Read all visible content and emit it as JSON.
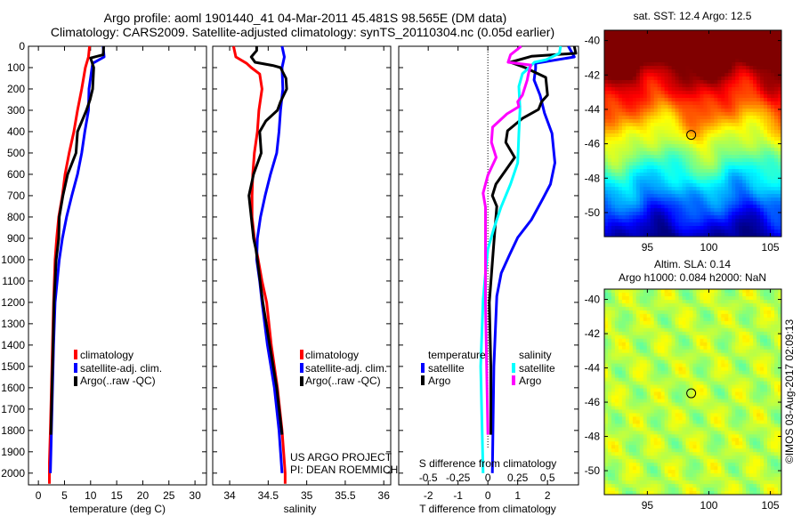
{
  "header": {
    "title_line1": "Argo profile: aoml 1901440_41 04-Mar-2011 45.481S 98.565E (DM data)",
    "title_line2": "Climatology: CARS2009. Satellite-adjusted climatology: synTS_20110304.nc (0.05d earlier)"
  },
  "legends": {
    "profile": [
      "climatology",
      "satellite-adj. clim.",
      "Argo(..raw -QC)"
    ],
    "diff_temperature_title": "temperature",
    "diff_salinity_title": "salinity",
    "diff_satellite": "satellite",
    "diff_argo": "Argo"
  },
  "credits": {
    "project": "US ARGO PROJECT",
    "pi": "PI: DEAN ROEMMICH",
    "imos": "©IMOS 03-Aug-2017 02:09:13"
  },
  "colors": {
    "climatology": "#ff0000",
    "satellite": "#0000ff",
    "argo": "#000000",
    "s_satellite": "#00ffff",
    "s_argo": "#ff00ff"
  },
  "chart_data": [
    {
      "type": "line",
      "title": "",
      "xlabel": "temperature (deg C)",
      "ylabel": "",
      "xlim": [
        -1.9,
        32.2
      ],
      "ylim": [
        2055,
        0
      ],
      "xticks": [
        0,
        5,
        10,
        15,
        20,
        25,
        30
      ],
      "yticks": [
        0,
        100,
        200,
        300,
        400,
        500,
        600,
        700,
        800,
        900,
        1000,
        1100,
        1200,
        1300,
        1400,
        1500,
        1600,
        1700,
        1800,
        1900,
        2000
      ],
      "series": [
        {
          "name": "climatology",
          "depth": [
            0,
            50,
            100,
            200,
            300,
            400,
            500,
            600,
            700,
            800,
            900,
            1000,
            1200,
            1400,
            1600,
            1800,
            1950,
            2050
          ],
          "values": [
            9.8,
            9.6,
            9.0,
            8.3,
            7.5,
            6.8,
            5.9,
            5.1,
            4.6,
            3.9,
            3.5,
            3.2,
            2.9,
            2.7,
            2.5,
            2.3,
            2.1,
            2.1
          ]
        },
        {
          "name": "satellite-adj. clim.",
          "depth": [
            0,
            50,
            80,
            200,
            300,
            400,
            500,
            600,
            700,
            800,
            900,
            1000,
            1200,
            1400,
            1600,
            1800,
            2000
          ],
          "values": [
            12.4,
            12.6,
            10.4,
            9.7,
            9.6,
            8.9,
            8.3,
            7.5,
            6.4,
            5.4,
            4.6,
            4.0,
            3.2,
            2.9,
            2.7,
            2.5,
            2.3
          ]
        },
        {
          "name": "Argo(..raw -QC)",
          "depth": [
            0,
            40,
            55,
            100,
            200,
            250,
            300,
            400,
            500,
            600,
            700,
            800,
            900,
            1000,
            1200,
            1400,
            1600,
            1820
          ],
          "values": [
            12.5,
            12.4,
            10.0,
            10.6,
            10.4,
            9.9,
            9.2,
            7.5,
            7.2,
            5.6,
            4.7,
            4.0,
            3.9,
            3.4,
            3.0,
            2.8,
            2.6,
            2.4
          ]
        }
      ]
    },
    {
      "type": "line",
      "title": "",
      "xlabel": "salinity",
      "ylabel": "",
      "xlim": [
        33.78,
        36.09
      ],
      "ylim": [
        2055,
        0
      ],
      "xticks": [
        34,
        34.5,
        35,
        35.5,
        36
      ],
      "series": [
        {
          "name": "climatology",
          "depth": [
            0,
            50,
            80,
            100,
            130,
            200,
            300,
            400,
            500,
            600,
            700,
            800,
            900,
            1000,
            1100,
            1200,
            1400,
            1600,
            1800,
            2000,
            2050
          ],
          "values": [
            34.05,
            34.08,
            34.22,
            34.28,
            34.39,
            34.42,
            34.38,
            34.36,
            34.32,
            34.3,
            34.29,
            34.29,
            34.32,
            34.37,
            34.42,
            34.48,
            34.54,
            34.62,
            34.68,
            34.72,
            34.72
          ]
        },
        {
          "name": "satellite-adj. clim.",
          "depth": [
            0,
            50,
            100,
            200,
            300,
            400,
            500,
            600,
            700,
            800,
            900,
            1000,
            1100,
            1200,
            1400,
            1600,
            1800,
            2000
          ],
          "values": [
            34.68,
            34.71,
            34.68,
            34.69,
            34.66,
            34.64,
            34.61,
            34.53,
            34.46,
            34.4,
            34.36,
            34.35,
            34.39,
            34.42,
            34.49,
            34.58,
            34.64,
            34.68
          ]
        },
        {
          "name": "Argo(..raw -QC)",
          "depth": [
            0,
            20,
            50,
            75,
            90,
            100,
            150,
            200,
            260,
            300,
            350,
            400,
            500,
            550,
            600,
            700,
            800,
            900,
            950,
            1000,
            1200,
            1400,
            1600,
            1820
          ],
          "values": [
            34.35,
            34.35,
            34.28,
            34.33,
            34.56,
            34.66,
            34.73,
            34.74,
            34.66,
            34.62,
            34.47,
            34.39,
            34.41,
            34.36,
            34.31,
            34.25,
            34.28,
            34.31,
            34.34,
            34.36,
            34.43,
            34.52,
            34.61,
            34.68
          ]
        }
      ]
    },
    {
      "type": "line",
      "title": "",
      "xlabel": "T difference from climatology",
      "x2label": "S difference from climatology",
      "xlim": [
        -2.99,
        3.04
      ],
      "x2lim": [
        -0.7475,
        0.76
      ],
      "ylim": [
        2055,
        0
      ],
      "xticks": [
        -2,
        -1,
        0,
        1,
        2
      ],
      "x2ticks": [
        -0.5,
        -0.25,
        0,
        0.25,
        0.5
      ],
      "x2ticklabels": [
        "-0.5",
        "-0.25",
        "0",
        "0.25",
        "0.5"
      ],
      "series": [
        {
          "name": "temperature satellite",
          "axis": "T",
          "depth": [
            0,
            50,
            80,
            104,
            158,
            229,
            313,
            408,
            546,
            646,
            713,
            813,
            896,
            979,
            1063,
            1171,
            1500,
            2000
          ],
          "values": [
            2.7,
            2.9,
            1.6,
            1.6,
            1.55,
            1.75,
            1.9,
            2.15,
            2.25,
            2.1,
            1.85,
            1.46,
            1.0,
            0.72,
            0.45,
            0.3,
            0.2,
            0.15
          ]
        },
        {
          "name": "temperature Argo",
          "axis": "T",
          "depth": [
            0,
            33,
            47,
            75,
            100,
            146,
            229,
            260,
            296,
            338,
            396,
            450,
            521,
            646,
            700,
            750,
            921,
            1200,
            1500,
            1820
          ],
          "values": [
            2.9,
            2.95,
            1.46,
            0.75,
            1.25,
            1.94,
            2.0,
            1.8,
            1.7,
            1.16,
            0.66,
            0.6,
            0.9,
            0.27,
            0.15,
            0.3,
            0.2,
            0.05,
            0.1,
            0.1
          ]
        },
        {
          "name": "salinity satellite",
          "axis": "S",
          "depth": [
            0,
            33,
            63,
            75,
            104,
            129,
            188,
            296,
            408,
            546,
            646,
            754,
            854,
            950,
            1063,
            1188,
            1500,
            2000
          ],
          "values": [
            0.61,
            0.6,
            0.49,
            0.39,
            0.34,
            0.29,
            0.26,
            0.27,
            0.26,
            0.25,
            0.19,
            0.11,
            0.05,
            0.0,
            -0.02,
            -0.04,
            -0.06,
            -0.04
          ]
        },
        {
          "name": "salinity Argo",
          "axis": "S",
          "depth": [
            0,
            40,
            75,
            88,
            130,
            158,
            229,
            260,
            283,
            317,
            379,
            450,
            521,
            604,
            688,
            754,
            1200,
            1500,
            1820
          ],
          "values": [
            0.28,
            0.19,
            0.17,
            0.36,
            0.34,
            0.33,
            0.29,
            0.25,
            0.26,
            0.16,
            0.04,
            0.03,
            0.07,
            0.0,
            -0.04,
            -0.02,
            -0.02,
            -0.01,
            0.0
          ]
        }
      ]
    },
    {
      "type": "heatmap",
      "title": "sat. SST: 12.4 Argo: 12.5",
      "xlim": [
        91.5,
        105.9
      ],
      "ylim": [
        -51.4,
        -39.4
      ],
      "xticks": [
        95,
        100,
        105
      ],
      "yticks": [
        -40,
        -42,
        -44,
        -46,
        -48,
        -50
      ],
      "argo_position": {
        "lon": 98.565,
        "lat": -45.481
      }
    },
    {
      "type": "heatmap",
      "title_line1": "Altim. SLA: 0.14",
      "title_line2": "Argo h1000: 0.084 h2000: NaN",
      "xlim": [
        91.5,
        105.9
      ],
      "ylim": [
        -51.4,
        -39.4
      ],
      "xticks": [
        95,
        100,
        105
      ],
      "yticks": [
        -40,
        -42,
        -44,
        -46,
        -48,
        -50
      ],
      "argo_position": {
        "lon": 98.565,
        "lat": -45.481
      }
    }
  ]
}
